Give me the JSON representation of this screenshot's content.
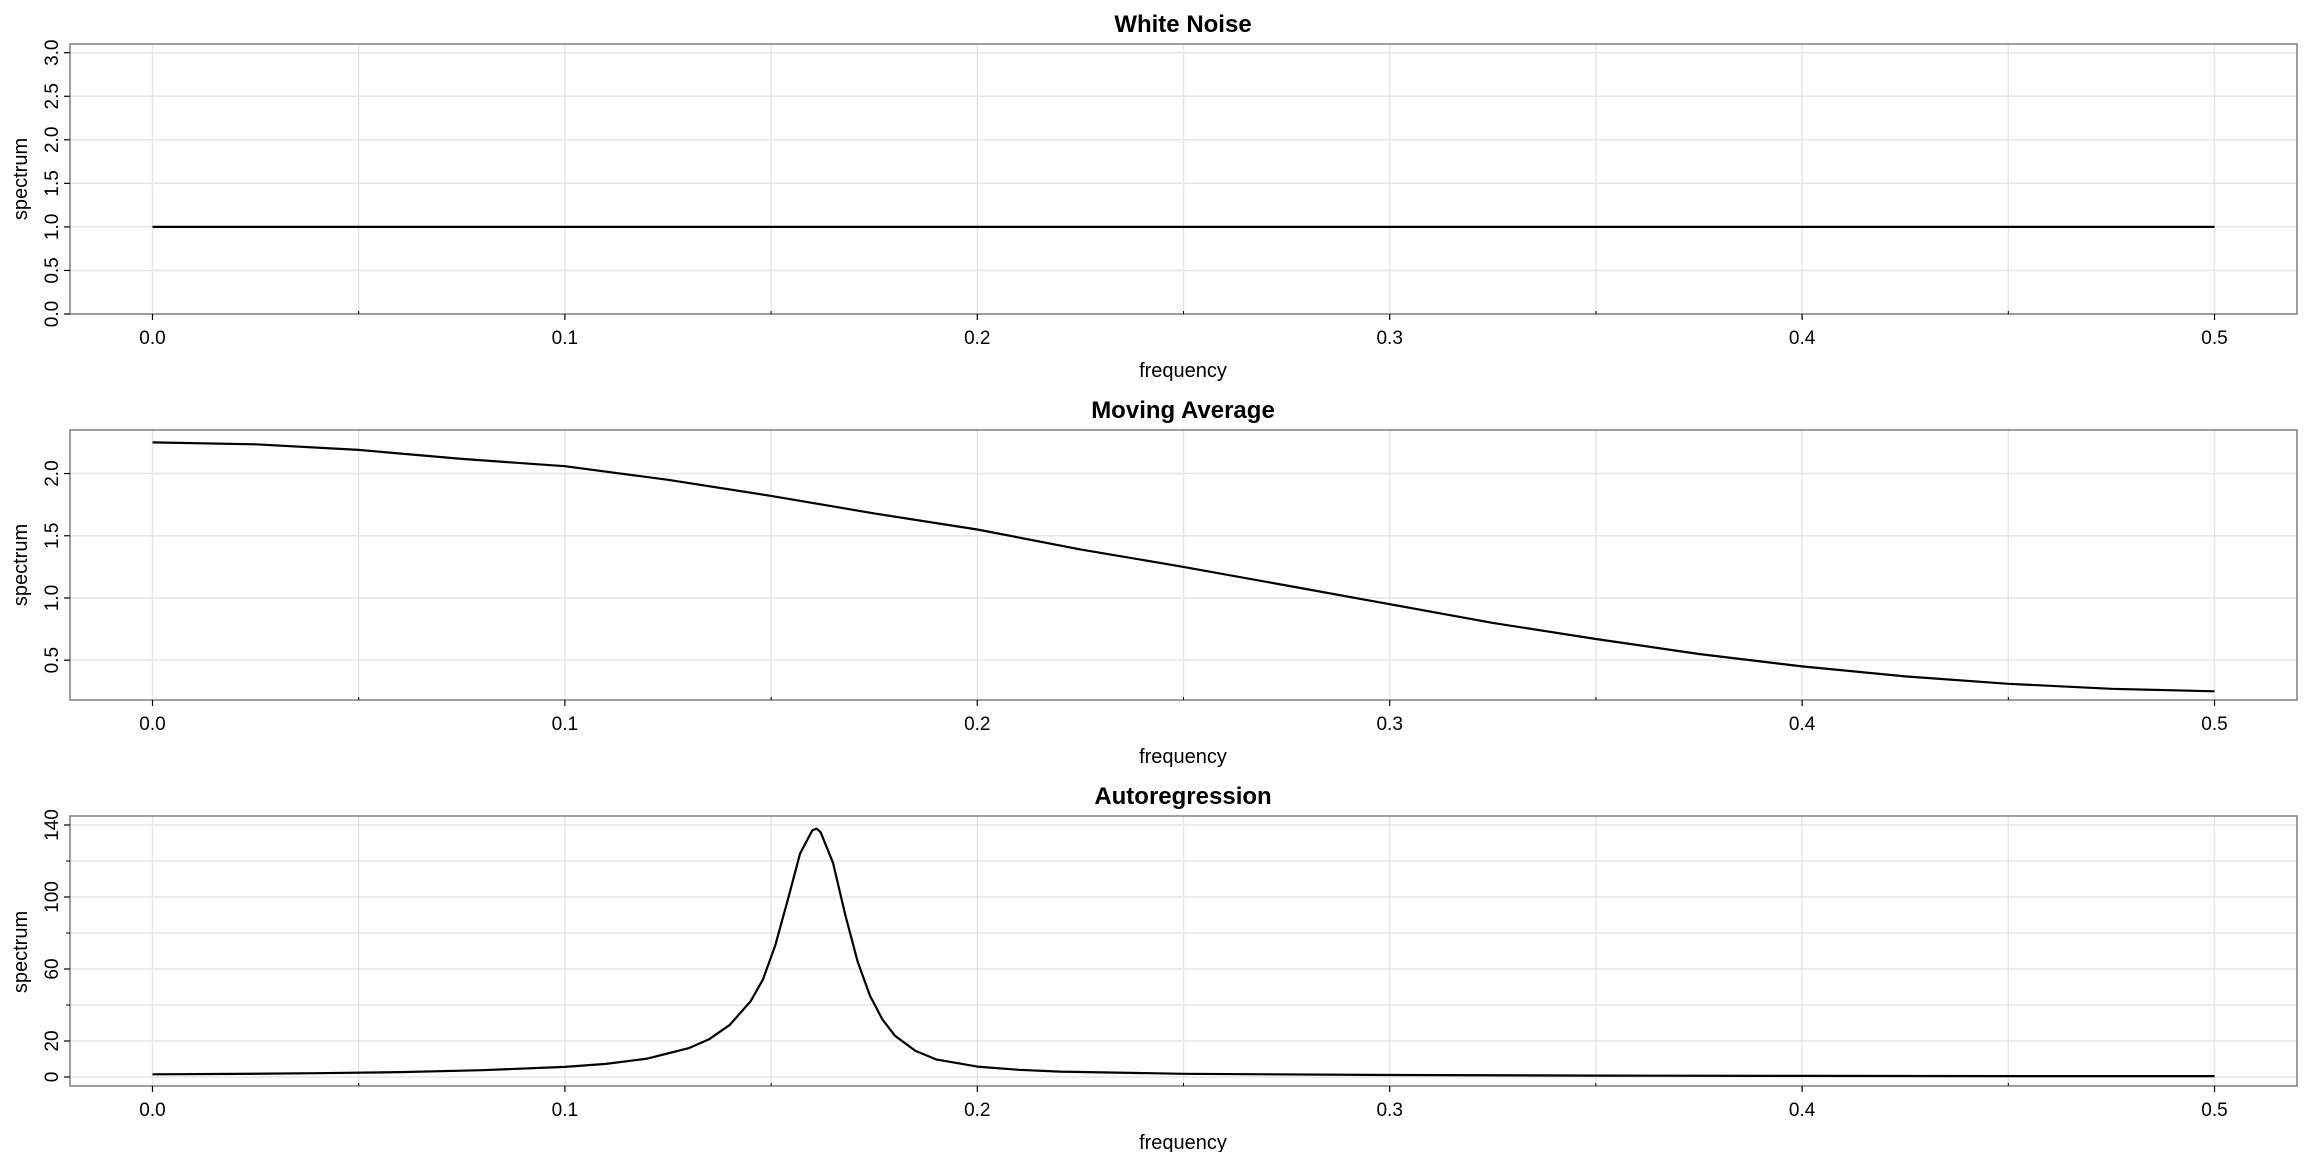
{
  "colors": {
    "line": "#000000",
    "grid": "#e6e6e6",
    "frame": "#808080",
    "tick": "#000000",
    "background": "#ffffff"
  },
  "chart_data": [
    {
      "type": "line",
      "title": "White Noise",
      "xlabel": "frequency",
      "ylabel": "spectrum",
      "xlim": [
        -0.02,
        0.52
      ],
      "ylim": [
        0,
        3.1
      ],
      "xticks": [
        0.0,
        0.1,
        0.2,
        0.3,
        0.4,
        0.5
      ],
      "xtick_labels": [
        "0.0",
        "0.1",
        "0.2",
        "0.3",
        "0.4",
        "0.5"
      ],
      "xminor": [
        0.05,
        0.15,
        0.25,
        0.35,
        0.45
      ],
      "yticks": [
        0.0,
        0.5,
        1.0,
        1.5,
        2.0,
        2.5,
        3.0
      ],
      "ytick_labels": [
        "0.0",
        "0.5",
        "1.0",
        "1.5",
        "2.0",
        "2.5",
        "3.0"
      ],
      "yminor": [],
      "grid": true,
      "series": [
        {
          "x": [
            0.0,
            0.1,
            0.2,
            0.3,
            0.4,
            0.5
          ],
          "y": [
            1.0,
            1.0,
            1.0,
            1.0,
            1.0,
            1.0
          ]
        }
      ]
    },
    {
      "type": "line",
      "title": "Moving Average",
      "xlabel": "frequency",
      "ylabel": "spectrum",
      "xlim": [
        -0.02,
        0.52
      ],
      "ylim": [
        0.18,
        2.35
      ],
      "xticks": [
        0.0,
        0.1,
        0.2,
        0.3,
        0.4,
        0.5
      ],
      "xtick_labels": [
        "0.0",
        "0.1",
        "0.2",
        "0.3",
        "0.4",
        "0.5"
      ],
      "xminor": [
        0.05,
        0.15,
        0.25,
        0.35,
        0.45
      ],
      "yticks": [
        0.5,
        1.0,
        1.5,
        2.0
      ],
      "ytick_labels": [
        "0.5",
        "1.0",
        "1.5",
        "2.0"
      ],
      "yminor": [],
      "grid": true,
      "series": [
        {
          "x": [
            0.0,
            0.025,
            0.05,
            0.075,
            0.1,
            0.125,
            0.15,
            0.175,
            0.2,
            0.225,
            0.25,
            0.275,
            0.3,
            0.325,
            0.35,
            0.375,
            0.4,
            0.425,
            0.45,
            0.475,
            0.5
          ],
          "y": [
            2.25,
            2.235,
            2.19,
            2.118,
            2.059,
            1.95,
            1.82,
            1.68,
            1.55,
            1.39,
            1.25,
            1.1,
            0.95,
            0.8,
            0.67,
            0.55,
            0.45,
            0.37,
            0.31,
            0.27,
            0.25
          ]
        }
      ]
    },
    {
      "type": "line",
      "title": "Autoregression",
      "xlabel": "frequency",
      "ylabel": "spectrum",
      "xlim": [
        -0.02,
        0.52
      ],
      "ylim": [
        -5,
        145
      ],
      "xticks": [
        0.0,
        0.1,
        0.2,
        0.3,
        0.4,
        0.5
      ],
      "xtick_labels": [
        "0.0",
        "0.1",
        "0.2",
        "0.3",
        "0.4",
        "0.5"
      ],
      "xminor": [
        0.05,
        0.15,
        0.25,
        0.35,
        0.45
      ],
      "yticks": [
        0,
        20,
        60,
        100,
        140
      ],
      "ytick_labels": [
        "0",
        "20",
        "60",
        "100",
        "140"
      ],
      "yminor": [
        40,
        80,
        120
      ],
      "grid": true,
      "series": [
        {
          "x": [
            0.0,
            0.02,
            0.04,
            0.06,
            0.08,
            0.1,
            0.11,
            0.12,
            0.13,
            0.135,
            0.14,
            0.145,
            0.148,
            0.151,
            0.154,
            0.157,
            0.16,
            0.161,
            0.162,
            0.165,
            0.168,
            0.171,
            0.174,
            0.177,
            0.18,
            0.185,
            0.19,
            0.2,
            0.21,
            0.22,
            0.25,
            0.3,
            0.35,
            0.4,
            0.45,
            0.5
          ],
          "y": [
            1.5,
            1.7,
            2.1,
            2.7,
            3.8,
            5.6,
            7.3,
            10.2,
            16.0,
            21.0,
            29.0,
            42.0,
            54.0,
            73.0,
            98.0,
            124.0,
            137.0,
            138.0,
            136.0,
            119.0,
            90.0,
            64.0,
            45.0,
            32.0,
            23.0,
            14.5,
            9.8,
            5.8,
            4.0,
            3.0,
            1.8,
            1.1,
            0.8,
            0.6,
            0.5,
            0.5
          ]
        }
      ]
    }
  ]
}
